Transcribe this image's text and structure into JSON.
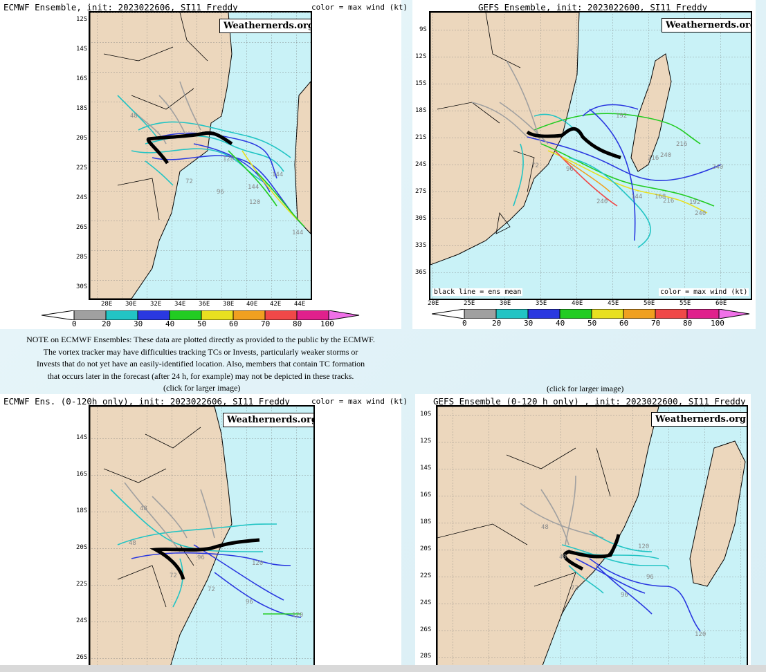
{
  "panels": [
    {
      "title": "ECMWF Ensemble, init: 2023022606, SI11 Freddy",
      "color_note": "color = max wind (kt)",
      "watermark": "Weathernerds.org",
      "lat_labels": [
        "12S",
        "14S",
        "16S",
        "18S",
        "20S",
        "22S",
        "24S",
        "26S",
        "28S",
        "30S"
      ],
      "lon_labels": [
        "28E",
        "30E",
        "32E",
        "34E",
        "36E",
        "38E",
        "40E",
        "42E",
        "44E"
      ],
      "colorbar": [
        "0",
        "20",
        "30",
        "40",
        "50",
        "60",
        "70",
        "80",
        "100"
      ]
    },
    {
      "title": "GEFS Ensemble, init: 2023022600, SI11 Freddy",
      "watermark": "Weathernerds.org",
      "lat_labels": [
        "9S",
        "12S",
        "15S",
        "18S",
        "21S",
        "24S",
        "27S",
        "30S",
        "33S",
        "36S"
      ],
      "lon_labels": [
        "20E",
        "25E",
        "30E",
        "35E",
        "40E",
        "45E",
        "50E",
        "55E",
        "60E"
      ],
      "footer_left": "black line = ens mean",
      "footer_right": "color = max wind (kt)",
      "colorbar": [
        "0",
        "20",
        "30",
        "40",
        "50",
        "60",
        "70",
        "80",
        "100"
      ]
    },
    {
      "title": "ECMWF Ens. (0-120h only), init: 2023022606, SI11 Freddy",
      "color_note": "color = max wind (kt)",
      "watermark": "Weathernerds.org",
      "lat_labels": [
        "14S",
        "16S",
        "18S",
        "20S",
        "22S",
        "24S",
        "26S"
      ]
    },
    {
      "title": "GEFS Ensemble (0-120 h only) , init: 2023022600, SI11 Freddy",
      "watermark": "Weathernerds.org",
      "lat_labels": [
        "10S",
        "12S",
        "14S",
        "16S",
        "18S",
        "20S",
        "22S",
        "24S",
        "26S",
        "28S"
      ]
    }
  ],
  "note_lines": [
    "NOTE on ECMWF Ensembles: These data are plotted directly as provided to the public by the ECMWF.",
    "The vortex tracker may have difficulties tracking TCs or Invests, particularly weaker storms or",
    "Invests that do not yet have an easily-identified location. Also, members that contain TC formation",
    "that occurs later in the forecast (after 24 h, for example) may not be depicted in these tracks."
  ],
  "click_left": "(click for larger image)",
  "click_right": "(click for larger image)",
  "track_labels_p1": [
    "48",
    "72",
    "96",
    "144",
    "120",
    "144",
    "144",
    "128",
    "48",
    "96"
  ],
  "track_labels_p2": [
    "192",
    "216",
    "240",
    "216",
    "240",
    "72",
    "96",
    "144",
    "168",
    "216",
    "192",
    "240",
    "240",
    "20",
    "120"
  ],
  "track_labels_p3": [
    "48",
    "48",
    "72",
    "96",
    "120",
    "72",
    "120",
    "96",
    "120",
    "120"
  ],
  "track_labels_p4": [
    "48",
    "72",
    "96",
    "120",
    "96",
    "120",
    "120",
    "48"
  ],
  "colors": {
    "land": "#ecd7bd",
    "ocean": "#c9f2f7",
    "mean_track": "#000000",
    "wind_0_20": "#a0a0a0",
    "wind_20_30": "#22c4c4",
    "wind_30_40": "#2a38e0",
    "wind_40_50": "#22cc22",
    "wind_50_60": "#e8e020",
    "wind_60_70": "#f0a020",
    "wind_70_80": "#f04848",
    "wind_80_100": "#e0208c",
    "wind_100_plus": "#f070e8"
  }
}
